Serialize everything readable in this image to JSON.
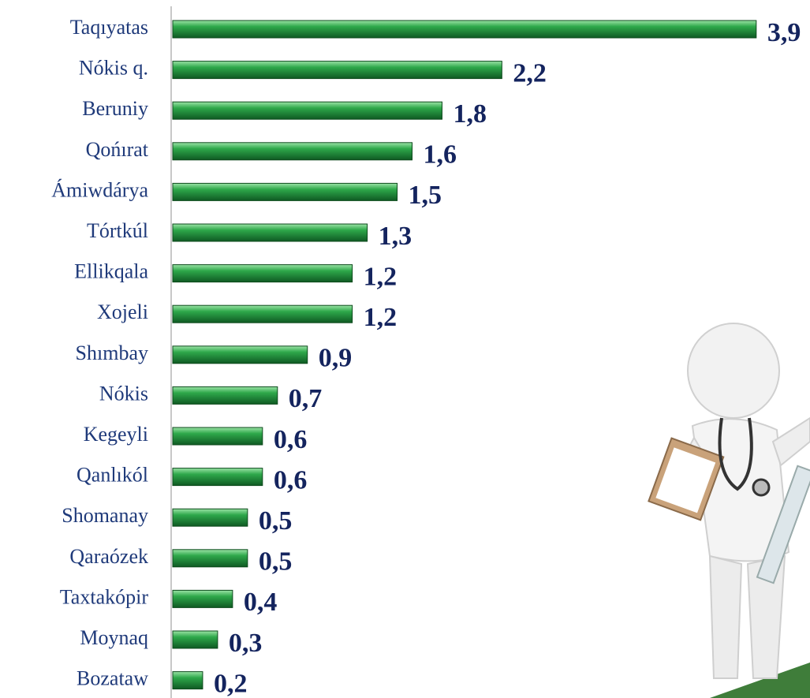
{
  "chart_data": {
    "type": "bar",
    "orientation": "horizontal",
    "color": "#2ea84a",
    "categories": [
      "Taqıyatas",
      "Nókis q.",
      "Beruniy",
      "Qońırat",
      "Ámiwdárya",
      "Tórtkúl",
      "Ellikqala",
      "Xojeli",
      "Shımbay",
      "Nókis",
      "Kegeyli",
      "Qanlıkól",
      "Shomanay",
      "Qaraózek",
      "Taxtakópir",
      "Moynaq",
      "Bozataw"
    ],
    "values": [
      3.9,
      2.2,
      1.8,
      1.6,
      1.5,
      1.3,
      1.2,
      1.2,
      0.9,
      0.7,
      0.6,
      0.6,
      0.5,
      0.5,
      0.4,
      0.3,
      0.2
    ],
    "value_labels": [
      "3,9",
      "2,2",
      "1,8",
      "1,6",
      "1,5",
      "1,3",
      "1,2",
      "1,2",
      "0,9",
      "0,7",
      "0,6",
      "0,6",
      "0,5",
      "0,5",
      "0,4",
      "0,3",
      "0,2"
    ]
  }
}
